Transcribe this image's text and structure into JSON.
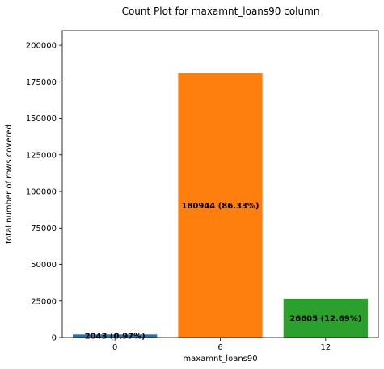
{
  "chart_data": {
    "type": "bar",
    "title": "Count Plot for maxamnt_loans90 column",
    "xlabel": "maxamnt_loans90",
    "ylabel": "total number of rows covered",
    "categories": [
      "0",
      "6",
      "12"
    ],
    "values": [
      2043,
      180944,
      26605
    ],
    "bar_labels": [
      "2043 (0.97%)",
      "180944 (86.33%)",
      "26605 (12.69%)"
    ],
    "colors": [
      "#1f77b4",
      "#ff7f0e",
      "#2ca02c"
    ],
    "ylim": [
      0,
      210000
    ],
    "yticks": [
      0,
      25000,
      50000,
      75000,
      100000,
      125000,
      150000,
      175000,
      200000
    ],
    "grid": false,
    "legend": "none"
  }
}
